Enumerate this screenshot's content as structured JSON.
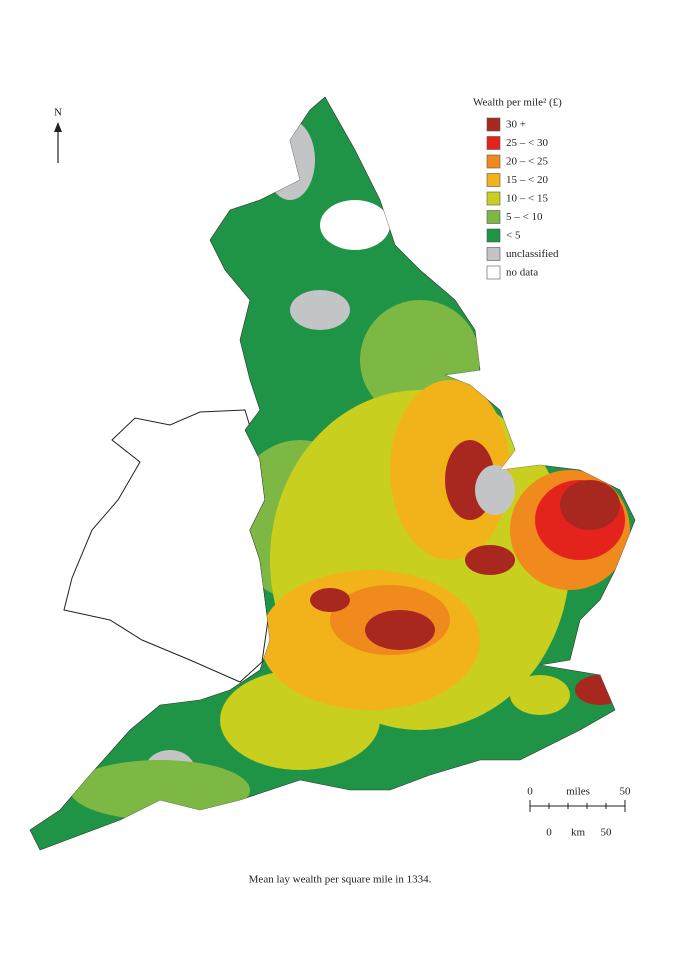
{
  "north_label": "N",
  "legend": {
    "title": "Wealth per mile² (£)",
    "items": [
      {
        "label": "30 +",
        "color": "#a8281f"
      },
      {
        "label": "25 – < 30",
        "color": "#e3231c"
      },
      {
        "label": "20 – < 25",
        "color": "#f08a1c"
      },
      {
        "label": "15 – < 20",
        "color": "#f2b31a"
      },
      {
        "label": "10 – < 15",
        "color": "#c9cf1f"
      },
      {
        "label": "5 – < 10",
        "color": "#7cb843"
      },
      {
        "label": "< 5",
        "color": "#1f9447"
      },
      {
        "label": "unclassified",
        "color": "#c3c4c6"
      },
      {
        "label": "no data",
        "color": "#ffffff"
      }
    ]
  },
  "scale": {
    "miles_start": "0",
    "miles_label": "miles",
    "miles_end": "50",
    "km_start": "0",
    "km_label": "km",
    "km_end": "50"
  },
  "caption": "Mean lay wealth per square mile in 1334."
}
